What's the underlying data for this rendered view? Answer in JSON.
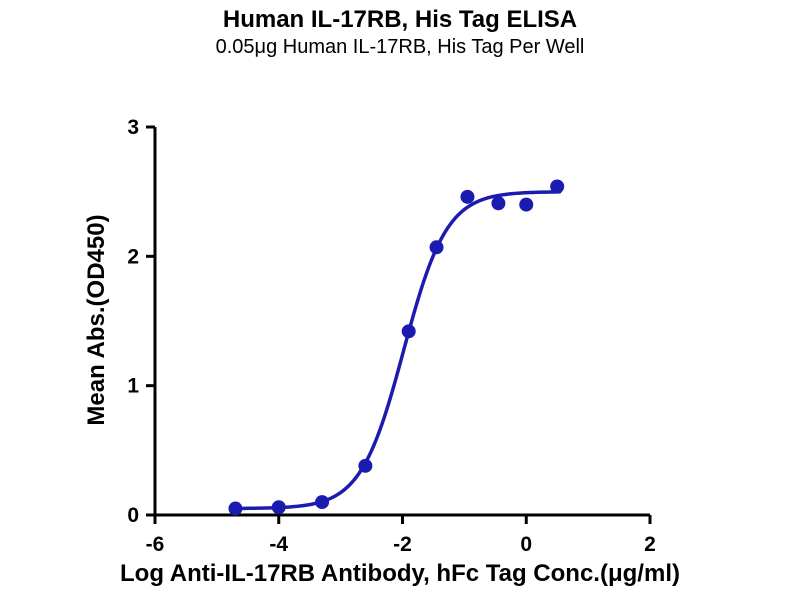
{
  "chart_data": {
    "type": "scatter",
    "title": "Human IL-17RB, His Tag ELISA",
    "subtitle": "0.05μg Human IL-17RB, His Tag Per Well",
    "xlabel": "Log Anti-IL-17RB Antibody, hFc Tag Conc.(μg/ml)",
    "ylabel": "Mean Abs.(OD450)",
    "xlim": [
      -6,
      2
    ],
    "ylim": [
      0,
      3
    ],
    "x_ticks": [
      -6,
      -4,
      -2,
      0,
      2
    ],
    "y_ticks": [
      0,
      1,
      2,
      3
    ],
    "grid": false,
    "legend": "none",
    "points": [
      {
        "x": -4.7,
        "y": 0.05
      },
      {
        "x": -4.0,
        "y": 0.06
      },
      {
        "x": -3.3,
        "y": 0.1
      },
      {
        "x": -2.6,
        "y": 0.38
      },
      {
        "x": -1.9,
        "y": 1.42
      },
      {
        "x": -1.45,
        "y": 2.07
      },
      {
        "x": -0.95,
        "y": 2.46
      },
      {
        "x": -0.45,
        "y": 2.41
      },
      {
        "x": 0.0,
        "y": 2.4
      },
      {
        "x": 0.5,
        "y": 2.54
      }
    ],
    "fit_curve": {
      "model": "4PL-sigmoid",
      "bottom": 0.05,
      "top": 2.5,
      "log_ec50": -1.98,
      "hill": 1.25,
      "x_start": -4.7,
      "x_end": 0.55
    },
    "colors": {
      "series": "#1b1caf",
      "axis": "#000000",
      "background": "#ffffff"
    }
  }
}
